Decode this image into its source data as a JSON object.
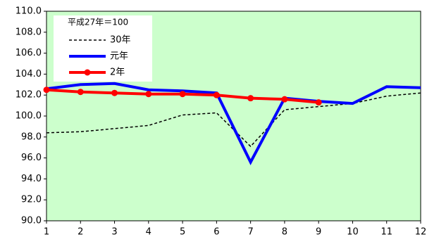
{
  "chart_data": {
    "type": "line",
    "annotation": "平成27年＝100",
    "x": [
      1,
      2,
      3,
      4,
      5,
      6,
      7,
      8,
      9,
      10,
      11,
      12
    ],
    "xlim": [
      1,
      12
    ],
    "xticks": [
      1,
      2,
      3,
      4,
      5,
      6,
      7,
      8,
      9,
      10,
      11,
      12
    ],
    "ylim": [
      90,
      110
    ],
    "yticks": [
      {
        "value": 90,
        "label": "90.0"
      },
      {
        "value": 92,
        "label": "92.0"
      },
      {
        "value": 94,
        "label": "94.0"
      },
      {
        "value": 96,
        "label": "96.0"
      },
      {
        "value": 98,
        "label": "98.0"
      },
      {
        "value": 100,
        "label": "100.0"
      },
      {
        "value": 102,
        "label": "102.0"
      },
      {
        "value": 104,
        "label": "104.0"
      },
      {
        "value": 106,
        "label": "106.0"
      },
      {
        "value": 108,
        "label": "108.0"
      },
      {
        "value": 110,
        "label": "110.0"
      }
    ],
    "background": "#ccffcc",
    "series": [
      {
        "name": "30年",
        "color": "#000000",
        "dashed": true,
        "values": [
          98.4,
          98.5,
          98.8,
          99.1,
          100.1,
          100.3,
          97.1,
          100.6,
          100.9,
          101.2,
          101.9,
          102.2
        ]
      },
      {
        "name": "元年",
        "color": "#0000ff",
        "values": [
          102.6,
          103.0,
          103.1,
          102.5,
          102.4,
          102.2,
          95.6,
          101.7,
          101.4,
          101.2,
          102.8,
          102.7
        ]
      },
      {
        "name": "2年",
        "color": "#ff0000",
        "markers": true,
        "values": [
          102.5,
          102.3,
          102.2,
          102.1,
          102.1,
          102.0,
          101.7,
          101.6,
          101.3,
          null,
          null,
          null
        ]
      }
    ]
  }
}
